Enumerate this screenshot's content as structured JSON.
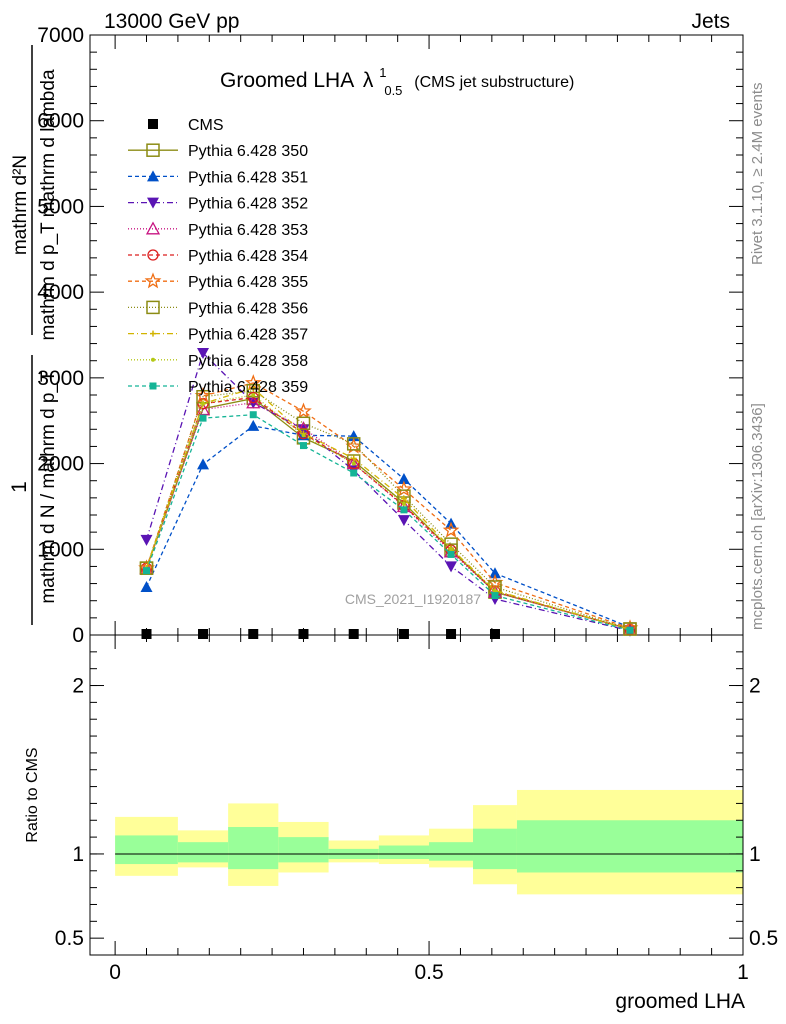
{
  "header": {
    "left": "13000 GeV pp",
    "right": "Jets"
  },
  "plot_title": {
    "main": "Groomed LHA",
    "lambda": "λ",
    "sup": "1",
    "sub": "0.5",
    "suffix": "(CMS jet substructure)"
  },
  "side_labels": {
    "rivet": "Rivet 3.1.10, ≥ 2.4M events",
    "mcplots": "mcplots.cern.ch [arXiv:1306.3436]"
  },
  "watermark": "CMS_2021_I1920187",
  "colors": {
    "band_inner": "#99ff99",
    "band_outer": "#ffff99"
  },
  "chart_data": [
    {
      "type": "line",
      "panel": "main",
      "ylabel": "1 / mathrm d N / mathrm d p_T mathrm d p_T mathrm d lambda   mathrm d^2 N",
      "ylabel_parts": {
        "num": "1",
        "den": "mathrm d N / mathrm d p_T",
        "num2": "mathrm d²N",
        "den2": "mathrm d p_T mathrm d lambda"
      },
      "xlim": [
        -0.04,
        1.0
      ],
      "ylim": [
        0,
        7000
      ],
      "yticks": [
        0,
        1000,
        2000,
        3000,
        4000,
        5000,
        6000,
        7000
      ],
      "ytick_labels": [
        "0",
        "1000",
        "2000",
        "3000",
        "4000",
        "5000",
        "6000",
        "7000"
      ],
      "x": [
        0.05,
        0.14,
        0.22,
        0.3,
        0.38,
        0.46,
        0.535,
        0.605,
        0.82
      ],
      "legend_position": "top-left",
      "series": [
        {
          "name": "CMS",
          "color": "#000000",
          "marker": "square-filled",
          "dash": "none",
          "values": [
            0,
            0,
            0,
            0,
            0,
            0,
            0,
            0,
            0
          ]
        },
        {
          "name": "Pythia 6.428 350",
          "color": "#8c8c14",
          "marker": "square-open",
          "dash": "solid",
          "values": [
            780,
            2640,
            2760,
            2300,
            2030,
            1540,
            990,
            500,
            70
          ]
        },
        {
          "name": "Pythia 6.428 351",
          "color": "#0050c8",
          "marker": "triangle-up-filled",
          "dash": "4,3",
          "values": [
            560,
            1990,
            2440,
            2330,
            2320,
            1820,
            1300,
            720,
            90
          ]
        },
        {
          "name": "Pythia 6.428 352",
          "color": "#5a14b4",
          "marker": "triangle-down-filled",
          "dash": "6,3,1,3",
          "values": [
            1110,
            3290,
            2710,
            2400,
            1920,
            1340,
            800,
            420,
            50
          ]
        },
        {
          "name": "Pythia 6.428 353",
          "color": "#c81482",
          "marker": "triangle-up-open",
          "dash": "1,2",
          "values": [
            780,
            2630,
            2710,
            2410,
            2000,
            1500,
            970,
            500,
            65
          ]
        },
        {
          "name": "Pythia 6.428 354",
          "color": "#dc1e1e",
          "marker": "circle-open",
          "dash": "4,3",
          "values": [
            780,
            2700,
            2770,
            2350,
            2000,
            1510,
            990,
            510,
            65
          ]
        },
        {
          "name": "Pythia 6.428 355",
          "color": "#f06e14",
          "marker": "star-open",
          "dash": "4,3",
          "values": [
            780,
            2790,
            2940,
            2610,
            2200,
            1700,
            1220,
            610,
            80
          ]
        },
        {
          "name": "Pythia 6.428 356",
          "color": "#8c8c14",
          "marker": "square-open",
          "dash": "1,2",
          "values": [
            780,
            2780,
            2850,
            2470,
            2230,
            1620,
            1060,
            560,
            70
          ]
        },
        {
          "name": "Pythia 6.428 357",
          "color": "#d2b400",
          "marker": "small-cross",
          "dash": "6,3,1,3",
          "values": [
            780,
            2700,
            2880,
            2350,
            2060,
            1590,
            1010,
            520,
            65
          ]
        },
        {
          "name": "Pythia 6.428 358",
          "color": "#b4c814",
          "marker": "small-dot",
          "dash": "1,2",
          "values": [
            780,
            2700,
            2800,
            2330,
            2000,
            1530,
            1000,
            510,
            65
          ]
        },
        {
          "name": "Pythia 6.428 359",
          "color": "#14b496",
          "marker": "square-small-filled",
          "dash": "4,3",
          "values": [
            750,
            2530,
            2570,
            2210,
            1890,
            1460,
            940,
            460,
            55
          ]
        }
      ]
    },
    {
      "type": "area",
      "panel": "ratio",
      "ylabel": "Ratio to CMS",
      "xlabel": "groomed LHA",
      "xlim": [
        -0.04,
        1.0
      ],
      "xticks": [
        0,
        0.5,
        1
      ],
      "xtick_labels": [
        "0",
        "0.5",
        "1"
      ],
      "ylim": [
        0.4,
        2.3
      ],
      "yticks": [
        0.5,
        1,
        2
      ],
      "ytick_labels": [
        "0.5",
        "1",
        "2"
      ],
      "bin_edges": [
        0.0,
        0.1,
        0.18,
        0.26,
        0.34,
        0.42,
        0.5,
        0.57,
        0.64,
        1.0
      ],
      "band_inner_low": [
        0.94,
        0.95,
        0.91,
        0.95,
        0.97,
        0.97,
        0.96,
        0.91,
        0.89
      ],
      "band_inner_high": [
        1.11,
        1.07,
        1.16,
        1.1,
        1.03,
        1.05,
        1.07,
        1.15,
        1.2
      ],
      "band_outer_low": [
        0.87,
        0.92,
        0.81,
        0.89,
        0.95,
        0.94,
        0.92,
        0.82,
        0.76
      ],
      "band_outer_high": [
        1.22,
        1.14,
        1.3,
        1.19,
        1.08,
        1.11,
        1.15,
        1.29,
        1.38
      ],
      "reference_line": 1
    }
  ]
}
